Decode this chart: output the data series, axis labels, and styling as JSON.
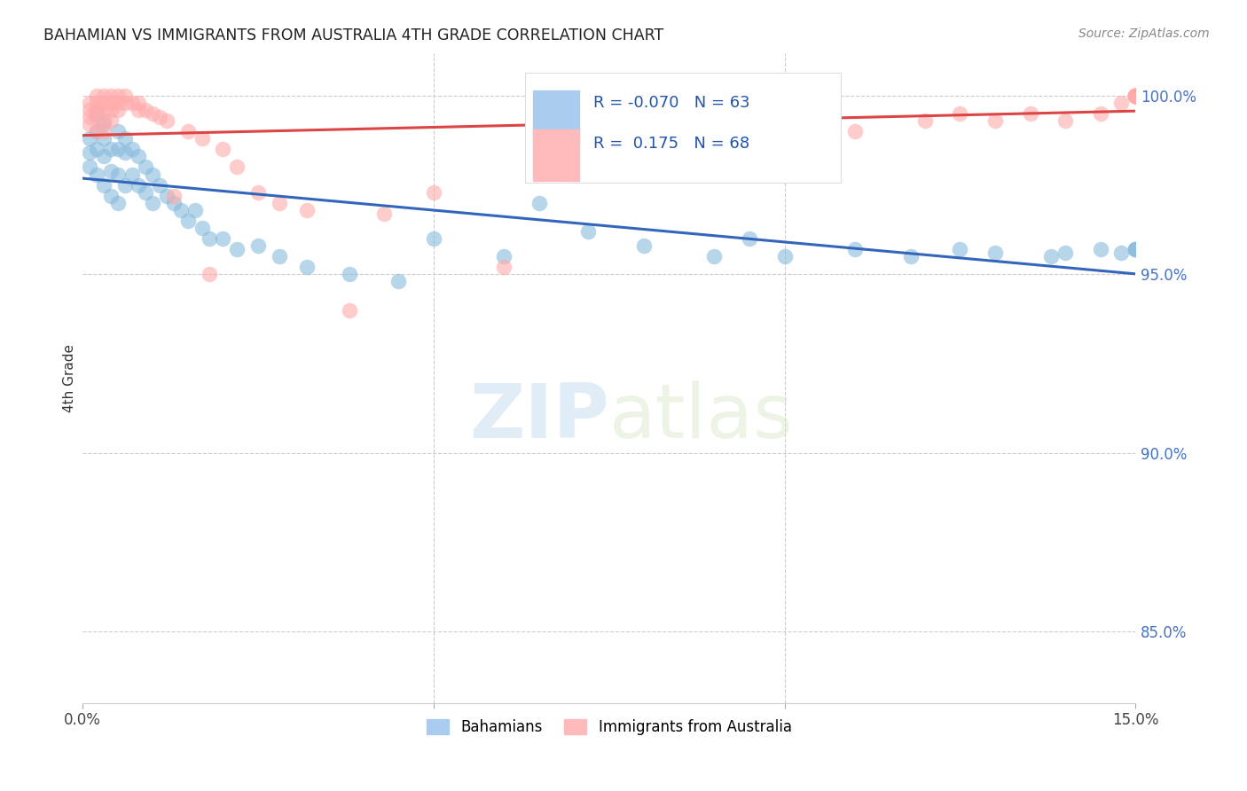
{
  "title": "BAHAMIAN VS IMMIGRANTS FROM AUSTRALIA 4TH GRADE CORRELATION CHART",
  "source": "Source: ZipAtlas.com",
  "ylabel": "4th Grade",
  "xlim": [
    0.0,
    0.15
  ],
  "ylim": [
    0.83,
    1.012
  ],
  "yticks_right": [
    0.85,
    0.9,
    0.95,
    1.0
  ],
  "ytick_labels_right": [
    "85.0%",
    "90.0%",
    "95.0%",
    "100.0%"
  ],
  "blue_color": "#88bbdd",
  "pink_color": "#ffaaaa",
  "blue_line_color": "#3366bb",
  "pink_line_color": "#dd4444",
  "blue_x": [
    0.001,
    0.001,
    0.001,
    0.002,
    0.002,
    0.002,
    0.002,
    0.003,
    0.003,
    0.003,
    0.003,
    0.004,
    0.004,
    0.004,
    0.005,
    0.005,
    0.005,
    0.005,
    0.006,
    0.006,
    0.006,
    0.007,
    0.007,
    0.008,
    0.008,
    0.009,
    0.009,
    0.01,
    0.01,
    0.011,
    0.012,
    0.013,
    0.014,
    0.015,
    0.016,
    0.017,
    0.018,
    0.02,
    0.022,
    0.025,
    0.028,
    0.032,
    0.038,
    0.045,
    0.05,
    0.06,
    0.065,
    0.072,
    0.08,
    0.09,
    0.095,
    0.1,
    0.11,
    0.118,
    0.125,
    0.13,
    0.138,
    0.14,
    0.145,
    0.148,
    0.15,
    0.15,
    0.15
  ],
  "blue_y": [
    0.988,
    0.984,
    0.98,
    0.995,
    0.99,
    0.985,
    0.978,
    0.992,
    0.988,
    0.983,
    0.975,
    0.985,
    0.979,
    0.972,
    0.99,
    0.985,
    0.978,
    0.97,
    0.988,
    0.984,
    0.975,
    0.985,
    0.978,
    0.983,
    0.975,
    0.98,
    0.973,
    0.978,
    0.97,
    0.975,
    0.972,
    0.97,
    0.968,
    0.965,
    0.968,
    0.963,
    0.96,
    0.96,
    0.957,
    0.958,
    0.955,
    0.952,
    0.95,
    0.948,
    0.96,
    0.955,
    0.97,
    0.962,
    0.958,
    0.955,
    0.96,
    0.955,
    0.957,
    0.955,
    0.957,
    0.956,
    0.955,
    0.956,
    0.957,
    0.956,
    0.957,
    0.957,
    0.957
  ],
  "pink_x": [
    0.001,
    0.001,
    0.001,
    0.001,
    0.002,
    0.002,
    0.002,
    0.002,
    0.002,
    0.003,
    0.003,
    0.003,
    0.003,
    0.003,
    0.004,
    0.004,
    0.004,
    0.004,
    0.005,
    0.005,
    0.005,
    0.006,
    0.006,
    0.007,
    0.008,
    0.008,
    0.009,
    0.01,
    0.011,
    0.012,
    0.013,
    0.015,
    0.017,
    0.018,
    0.02,
    0.022,
    0.025,
    0.028,
    0.032,
    0.038,
    0.043,
    0.05,
    0.06,
    0.07,
    0.08,
    0.09,
    0.11,
    0.12,
    0.125,
    0.13,
    0.135,
    0.14,
    0.145,
    0.148,
    0.15,
    0.15,
    0.15,
    0.15,
    0.15,
    0.15,
    0.15,
    0.15,
    0.15,
    0.15,
    0.15,
    0.15,
    0.15,
    0.15
  ],
  "pink_y": [
    0.998,
    0.996,
    0.994,
    0.992,
    1.0,
    0.998,
    0.996,
    0.994,
    0.99,
    1.0,
    0.998,
    0.996,
    0.993,
    0.99,
    1.0,
    0.998,
    0.996,
    0.993,
    1.0,
    0.998,
    0.996,
    1.0,
    0.998,
    0.998,
    0.998,
    0.996,
    0.996,
    0.995,
    0.994,
    0.993,
    0.972,
    0.99,
    0.988,
    0.95,
    0.985,
    0.98,
    0.973,
    0.97,
    0.968,
    0.94,
    0.967,
    0.973,
    0.952,
    0.993,
    0.993,
    0.993,
    0.99,
    0.993,
    0.995,
    0.993,
    0.995,
    0.993,
    0.995,
    0.998,
    1.0,
    1.0,
    1.0,
    1.0,
    1.0,
    1.0,
    1.0,
    1.0,
    1.0,
    1.0,
    1.0,
    1.0,
    1.0,
    1.0
  ]
}
